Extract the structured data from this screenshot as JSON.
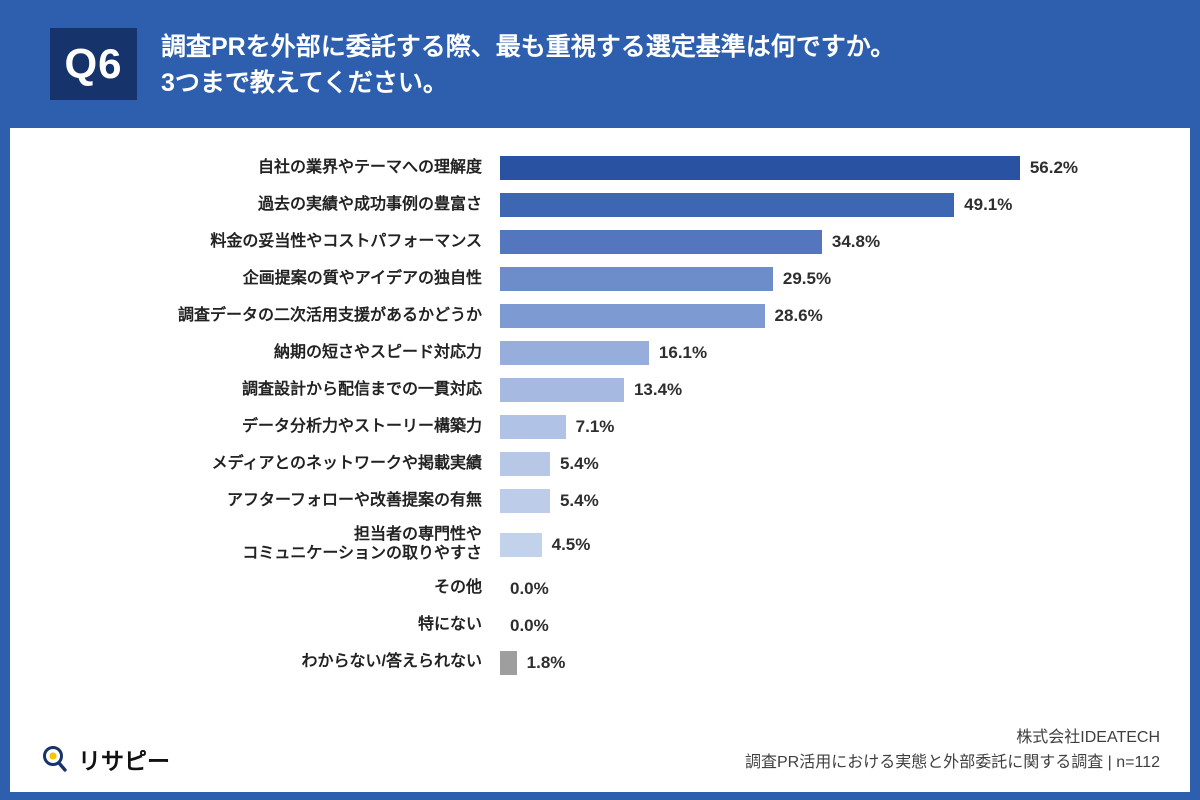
{
  "header": {
    "q_label": "Q6",
    "title": "調査PRを外部に委託する際、最も重視する選定基準は何ですか。\n3つまで教えてください。"
  },
  "chart_data": {
    "type": "bar",
    "orientation": "horizontal",
    "title": "調査PRを外部に委託する際、最も重視する選定基準",
    "categories": [
      "自社の業界やテーマへの理解度",
      "過去の実績や成功事例の豊富さ",
      "料金の妥当性やコストパフォーマンス",
      "企画提案の質やアイデアの独自性",
      "調査データの二次活用支援があるかどうか",
      "納期の短さやスピード対応力",
      "調査設計から配信までの一貫対応",
      "データ分析力やストーリー構築力",
      "メディアとのネットワークや掲載実績",
      "アフターフォローや改善提案の有無",
      "担当者の専門性や\nコミュニケーションの取りやすさ",
      "その他",
      "特にない",
      "わからない/答えられない"
    ],
    "values": [
      56.2,
      49.1,
      34.8,
      29.5,
      28.6,
      16.1,
      13.4,
      7.1,
      5.4,
      5.4,
      4.5,
      0.0,
      0.0,
      1.8
    ],
    "value_labels": [
      "56.2%",
      "49.1%",
      "34.8%",
      "29.5%",
      "28.6%",
      "16.1%",
      "13.4%",
      "7.1%",
      "5.4%",
      "5.4%",
      "4.5%",
      "0.0%",
      "0.0%",
      "1.8%"
    ],
    "bar_colors": [
      "#2a52a2",
      "#3d66b3",
      "#5476bf",
      "#6d8cca",
      "#7e9ad3",
      "#97aedc",
      "#a5b9e1",
      "#b0c2e5",
      "#b7c8e7",
      "#bdcde9",
      "#c3d2eb",
      "#c3d2eb",
      "#c3d2eb",
      "#9e9e9e"
    ],
    "xlim": [
      0,
      60
    ],
    "grid": false,
    "legend": "none",
    "xlabel": "",
    "ylabel": ""
  },
  "footer": {
    "logo_text": "リサピー",
    "company": "株式会社IDEATECH",
    "survey_note": "調査PR活用における実態と外部委託に関する調査 | n=112"
  },
  "colors": {
    "background": "#2d5fae",
    "badge": "#17336b",
    "card": "#ffffff",
    "label_text": "#222222",
    "value_text": "#2e2e2e",
    "gray_bar": "#9e9e9e"
  }
}
